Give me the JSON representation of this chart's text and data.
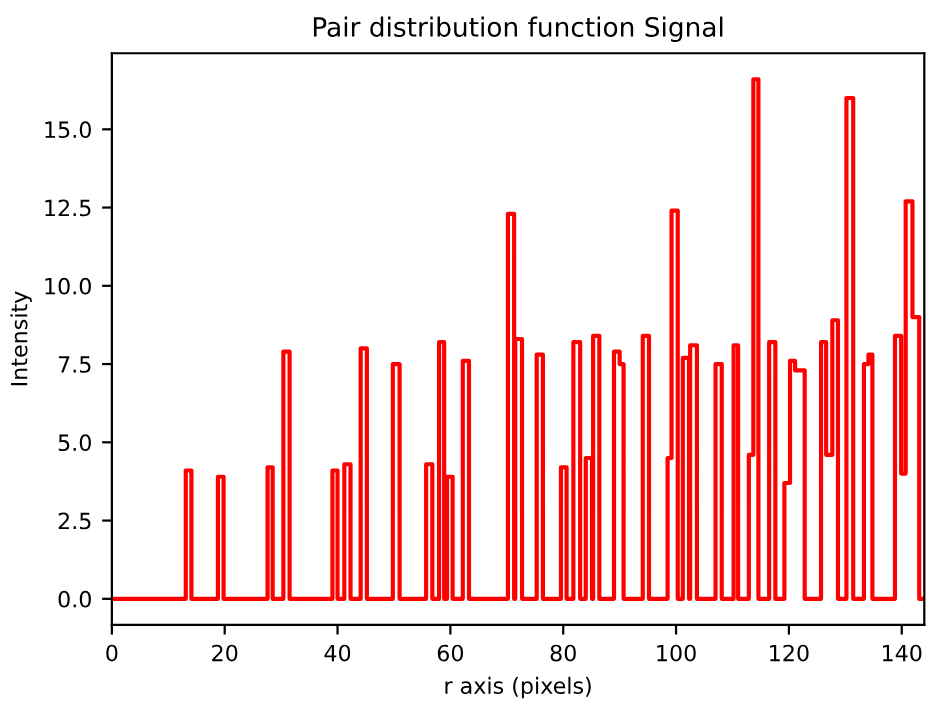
{
  "chart_data": {
    "type": "step",
    "title": "Pair distribution function Signal",
    "xlabel": "r axis (pixels)",
    "ylabel": "Intensity",
    "series": [
      {
        "color": "#ff0000",
        "x": [
          0,
          13.1,
          14.1,
          18.8,
          19.8,
          27.6,
          28.5,
          30.4,
          31.5,
          39.1,
          40.0,
          41.2,
          42.3,
          44.1,
          45.2,
          49.8,
          51.0,
          55.7,
          56.8,
          58.0,
          58.9,
          59.4,
          60.4,
          62.2,
          63.3,
          70.2,
          71.3,
          71.5,
          72.7,
          75.3,
          76.4,
          79.6,
          80.6,
          81.8,
          83.0,
          84.0,
          85.1,
          85.3,
          86.4,
          89.0,
          90.0,
          90.7,
          94.1,
          95.2,
          98.5,
          99.2,
          100.3,
          101.2,
          102.3,
          102.5,
          103.7,
          107.0,
          108.1,
          110.2,
          111.0,
          112.9,
          113.7,
          114.6,
          116.5,
          117.6,
          119.2,
          120.2,
          121.1,
          122.8,
          125.7,
          126.6,
          127.7,
          128.7,
          130.2,
          131.4,
          133.3,
          134.1,
          134.8,
          138.8,
          139.9,
          140.7,
          141.9,
          143.1,
          144
        ],
        "values": [
          0,
          4.1,
          0,
          3.9,
          0,
          4.2,
          0,
          7.9,
          0,
          4.1,
          0,
          4.3,
          0,
          8.0,
          0,
          7.5,
          0,
          4.3,
          0,
          8.2,
          0,
          3.9,
          0,
          7.6,
          0,
          12.3,
          0,
          8.3,
          0,
          7.8,
          0,
          4.2,
          0,
          8.2,
          0,
          4.5,
          0,
          8.4,
          0,
          7.9,
          7.5,
          0,
          8.4,
          0,
          4.5,
          12.4,
          0,
          7.7,
          0,
          8.1,
          0,
          7.5,
          0,
          8.1,
          0,
          4.6,
          16.6,
          0,
          8.2,
          0,
          3.7,
          7.6,
          7.3,
          0,
          8.2,
          4.6,
          8.9,
          0,
          16.0,
          0,
          7.5,
          7.8,
          0,
          8.4,
          4.0,
          12.7,
          9.0,
          0,
          0
        ]
      }
    ],
    "xlim": [
      0,
      144
    ],
    "ylim": [
      -0.83,
      17.43
    ],
    "xticks": [
      0,
      20,
      40,
      60,
      80,
      100,
      120,
      140
    ],
    "yticks": [
      {
        "value": 0,
        "label": "0.0"
      },
      {
        "value": 2.5,
        "label": "2.5"
      },
      {
        "value": 5,
        "label": "5.0"
      },
      {
        "value": 7.5,
        "label": "7.5"
      },
      {
        "value": 10,
        "label": "10.0"
      },
      {
        "value": 12.5,
        "label": "12.5"
      },
      {
        "value": 15,
        "label": "15.0"
      }
    ],
    "grid": false,
    "legend": false
  }
}
